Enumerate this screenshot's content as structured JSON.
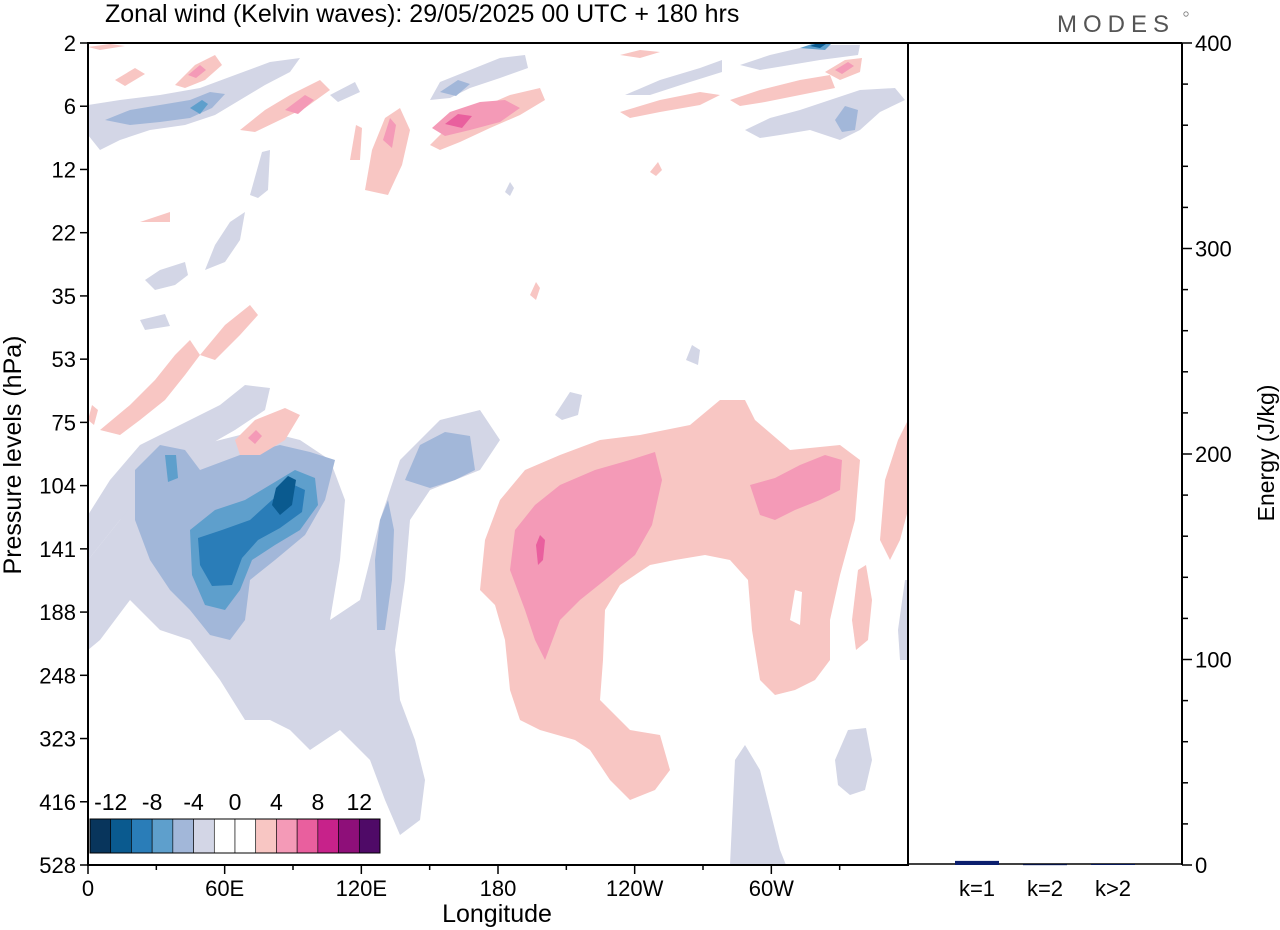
{
  "title": "Zonal wind (Kelvin waves):  29/05/2025  00 UTC  + 180 hrs",
  "logo": "MODES",
  "colors": {
    "neg4": "#d3d6e6",
    "neg8": "#a2b7d9",
    "neg12": "#5e9fcc",
    "neg16": "#2a7db8",
    "neg20": "#0a5a8f",
    "neg24": "#08355c",
    "pos4": "#f8c6c3",
    "pos8": "#f49ab7",
    "pos12": "#e95f9e",
    "pos16": "#c7228a",
    "pos20": "#8e0f79",
    "pos24": "#4f0a67",
    "bar": "#0b1f6e",
    "frame": "#000000"
  },
  "chart_data": [
    {
      "type": "heatmap",
      "xlabel": "Longitude",
      "ylabel": "Pressure levels (hPa)",
      "x_ticks": [
        "0",
        "60E",
        "120E",
        "180",
        "120W",
        "60W"
      ],
      "y_ticks": [
        "2",
        "6",
        "12",
        "22",
        "35",
        "53",
        "75",
        "104",
        "141",
        "188",
        "248",
        "323",
        "416",
        "528"
      ],
      "colorbar": {
        "labels": [
          "-12",
          "-8",
          "-4",
          "0",
          "4",
          "8",
          "12"
        ],
        "levels": [
          -14,
          -12,
          -10,
          -8,
          -6,
          -4,
          -2,
          2,
          4,
          6,
          8,
          10,
          12,
          14
        ]
      }
    },
    {
      "type": "bar",
      "ylabel": "Energy (J/kg)",
      "categories": [
        "k=1",
        "k=2",
        "k>2"
      ],
      "values": [
        2,
        0.3,
        0.4
      ],
      "ylim": [
        0,
        400
      ],
      "y_ticks": [
        "0",
        "100",
        "200",
        "300",
        "400"
      ]
    }
  ]
}
